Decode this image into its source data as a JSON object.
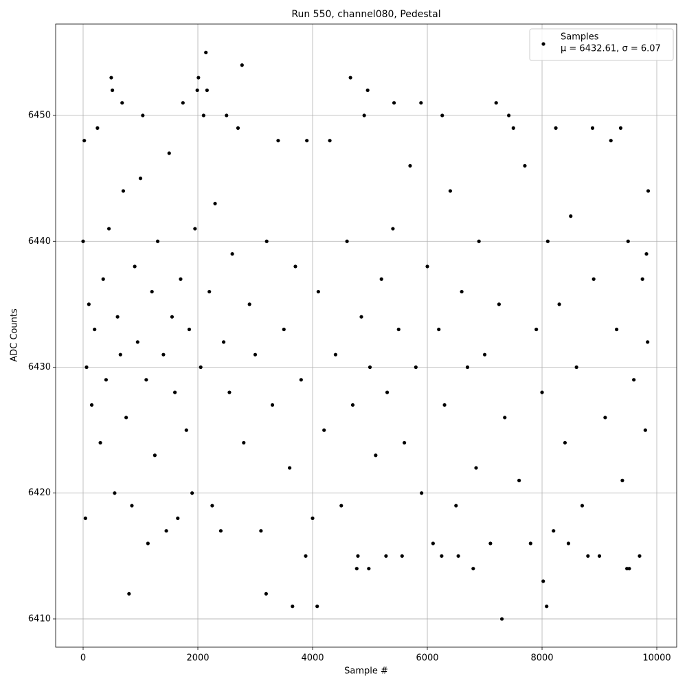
{
  "chart_data": {
    "type": "scatter",
    "title": "Run 550, channel080, Pedestal",
    "x_label": "Sample #",
    "y_label": "ADC Counts",
    "xlim": [
      -479,
      10347
    ],
    "ylim": [
      6407.76,
      6457.26
    ],
    "xticks": [
      0,
      2000,
      4000,
      6000,
      8000,
      10000
    ],
    "yticks": [
      6410,
      6420,
      6430,
      6440,
      6450
    ],
    "grid": true,
    "legend": "upper right",
    "legend_stats": "μ = 6432.61, σ = 6.07",
    "x": [
      0,
      20,
      40,
      60,
      100,
      150,
      200,
      250,
      300,
      350,
      400,
      450,
      550,
      600,
      650,
      700,
      750,
      850,
      900,
      950,
      1000,
      1100,
      1200,
      1250,
      1300,
      1400,
      1450,
      1500,
      1550,
      1600,
      1650,
      1700,
      1800,
      1850,
      1900,
      1950,
      2050,
      2200,
      2250,
      2300,
      2400,
      2450,
      2550,
      2600,
      2700,
      2800,
      2900,
      3000,
      3100,
      3200,
      3300,
      3400,
      3500,
      3600,
      3700,
      3800,
      3900,
      4000,
      4100,
      4200,
      4300,
      4400,
      4500,
      4600,
      4700,
      4850,
      4900,
      5000,
      5100,
      5200,
      5300,
      5400,
      5500,
      5600,
      5700,
      5800,
      5900,
      6000,
      6100,
      6200,
      6300,
      6400,
      6500,
      6600,
      6700,
      6850,
      6900,
      7000,
      7100,
      7250,
      7350,
      7500,
      7600,
      7700,
      7800,
      7900,
      8000,
      8100,
      8200,
      8300,
      8400,
      8500,
      8600,
      8700,
      8900,
      9100,
      9200,
      9300,
      9400,
      9500,
      9600,
      9700,
      9750,
      9800,
      9820,
      9840,
      490,
      510,
      680,
      800,
      1040,
      1130,
      1740,
      1990,
      2010,
      2100,
      2140,
      2160,
      2500,
      2770,
      3190,
      3650,
      3880,
      4080,
      4660,
      4770,
      4790,
      4960,
      4980,
      5280,
      5420,
      5560,
      5890,
      6250,
      6260,
      6540,
      6800,
      7200,
      7300,
      7420,
      8020,
      8080,
      8240,
      8460,
      8800,
      8880,
      9000,
      9370,
      9480,
      9520,
      9850
    ],
    "series": [
      {
        "name": "Samples",
        "color": "#000000",
        "values": [
          6440,
          6448,
          6418,
          6430,
          6435,
          6427,
          6433,
          6449,
          6424,
          6437,
          6429,
          6441,
          6420,
          6434,
          6431,
          6444,
          6426,
          6419,
          6438,
          6432,
          6445,
          6429,
          6436,
          6423,
          6440,
          6431,
          6417,
          6447,
          6434,
          6428,
          6418,
          6437,
          6425,
          6433,
          6420,
          6441,
          6430,
          6436,
          6419,
          6443,
          6417,
          6432,
          6428,
          6439,
          6449,
          6424,
          6435,
          6431,
          6417,
          6440,
          6427,
          6448,
          6433,
          6422,
          6438,
          6429,
          6448,
          6418,
          6436,
          6425,
          6448,
          6431,
          6419,
          6440,
          6427,
          6434,
          6450,
          6430,
          6423,
          6437,
          6428,
          6441,
          6433,
          6424,
          6446,
          6430,
          6420,
          6438,
          6416,
          6433,
          6427,
          6444,
          6419,
          6436,
          6430,
          6422,
          6440,
          6431,
          6416,
          6435,
          6426,
          6449,
          6421,
          6446,
          6416,
          6433,
          6428,
          6440,
          6417,
          6435,
          6424,
          6442,
          6430,
          6419,
          6437,
          6426,
          6448,
          6433,
          6421,
          6440,
          6429,
          6415,
          6437,
          6425,
          6439,
          6432,
          6453,
          6452,
          6451,
          6412,
          6450,
          6416,
          6451,
          6452,
          6453,
          6450,
          6455,
          6452,
          6450,
          6454,
          6412,
          6411,
          6415,
          6411,
          6453,
          6414,
          6415,
          6452,
          6414,
          6415,
          6451,
          6415,
          6451,
          6415,
          6450,
          6415,
          6414,
          6451,
          6410,
          6450,
          6413,
          6411,
          6449,
          6416,
          6415,
          6449,
          6415,
          6449,
          6414,
          6414,
          6444
        ]
      }
    ]
  }
}
